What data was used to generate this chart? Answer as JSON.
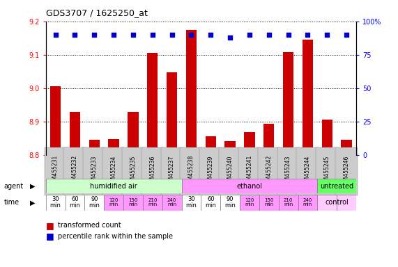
{
  "title": "GDS3707 / 1625250_at",
  "samples": [
    "GSM455231",
    "GSM455232",
    "GSM455233",
    "GSM455234",
    "GSM455235",
    "GSM455236",
    "GSM455237",
    "GSM455238",
    "GSM455239",
    "GSM455240",
    "GSM455241",
    "GSM455242",
    "GSM455243",
    "GSM455244",
    "GSM455245",
    "GSM455246"
  ],
  "bar_values": [
    9.005,
    8.928,
    8.846,
    8.848,
    8.928,
    9.105,
    9.048,
    9.175,
    8.855,
    8.842,
    8.868,
    8.893,
    9.108,
    9.145,
    8.905,
    8.845
  ],
  "percentile_values": [
    90,
    90,
    90,
    90,
    90,
    90,
    90,
    90,
    90,
    88,
    90,
    90,
    90,
    90,
    90,
    90
  ],
  "percentile_scale": 100,
  "y_min": 8.8,
  "y_max": 9.2,
  "y_ticks": [
    8.8,
    8.9,
    9.0,
    9.1,
    9.2
  ],
  "right_y_ticks": [
    0,
    25,
    50,
    75,
    100
  ],
  "right_y_labels": [
    "0",
    "25",
    "50",
    "75",
    "100%"
  ],
  "bar_color": "#cc0000",
  "percentile_color": "#0000cc",
  "bar_width": 0.55,
  "agent_groups": [
    {
      "label": "humidified air",
      "start": 0,
      "end": 7,
      "color": "#ccffcc"
    },
    {
      "label": "ethanol",
      "start": 7,
      "end": 14,
      "color": "#ff99ff"
    },
    {
      "label": "untreated",
      "start": 14,
      "end": 16,
      "color": "#66ff66"
    }
  ],
  "time_labels": [
    "30\nmin",
    "60\nmin",
    "90\nmin",
    "120\nmin",
    "150\nmin",
    "210\nmin",
    "240\nmin",
    "30\nmin",
    "60\nmin",
    "90\nmin",
    "120\nmin",
    "150\nmin",
    "210\nmin",
    "240\nmin",
    "",
    ""
  ],
  "time_colors_white": [
    0,
    1,
    2,
    7,
    8,
    9
  ],
  "time_colors_pink": [
    3,
    4,
    5,
    6,
    10,
    11,
    12,
    13
  ],
  "time_colors_lightpink": [
    14,
    15
  ],
  "white_color": "#ffffff",
  "pink_color": "#ff99ff",
  "lightpink_color": "#ffccff",
  "agent_label": "agent",
  "time_label": "time",
  "legend_bar_label": "transformed count",
  "legend_pct_label": "percentile rank within the sample",
  "control_label": "control",
  "xticklabel_bg": "#cccccc"
}
